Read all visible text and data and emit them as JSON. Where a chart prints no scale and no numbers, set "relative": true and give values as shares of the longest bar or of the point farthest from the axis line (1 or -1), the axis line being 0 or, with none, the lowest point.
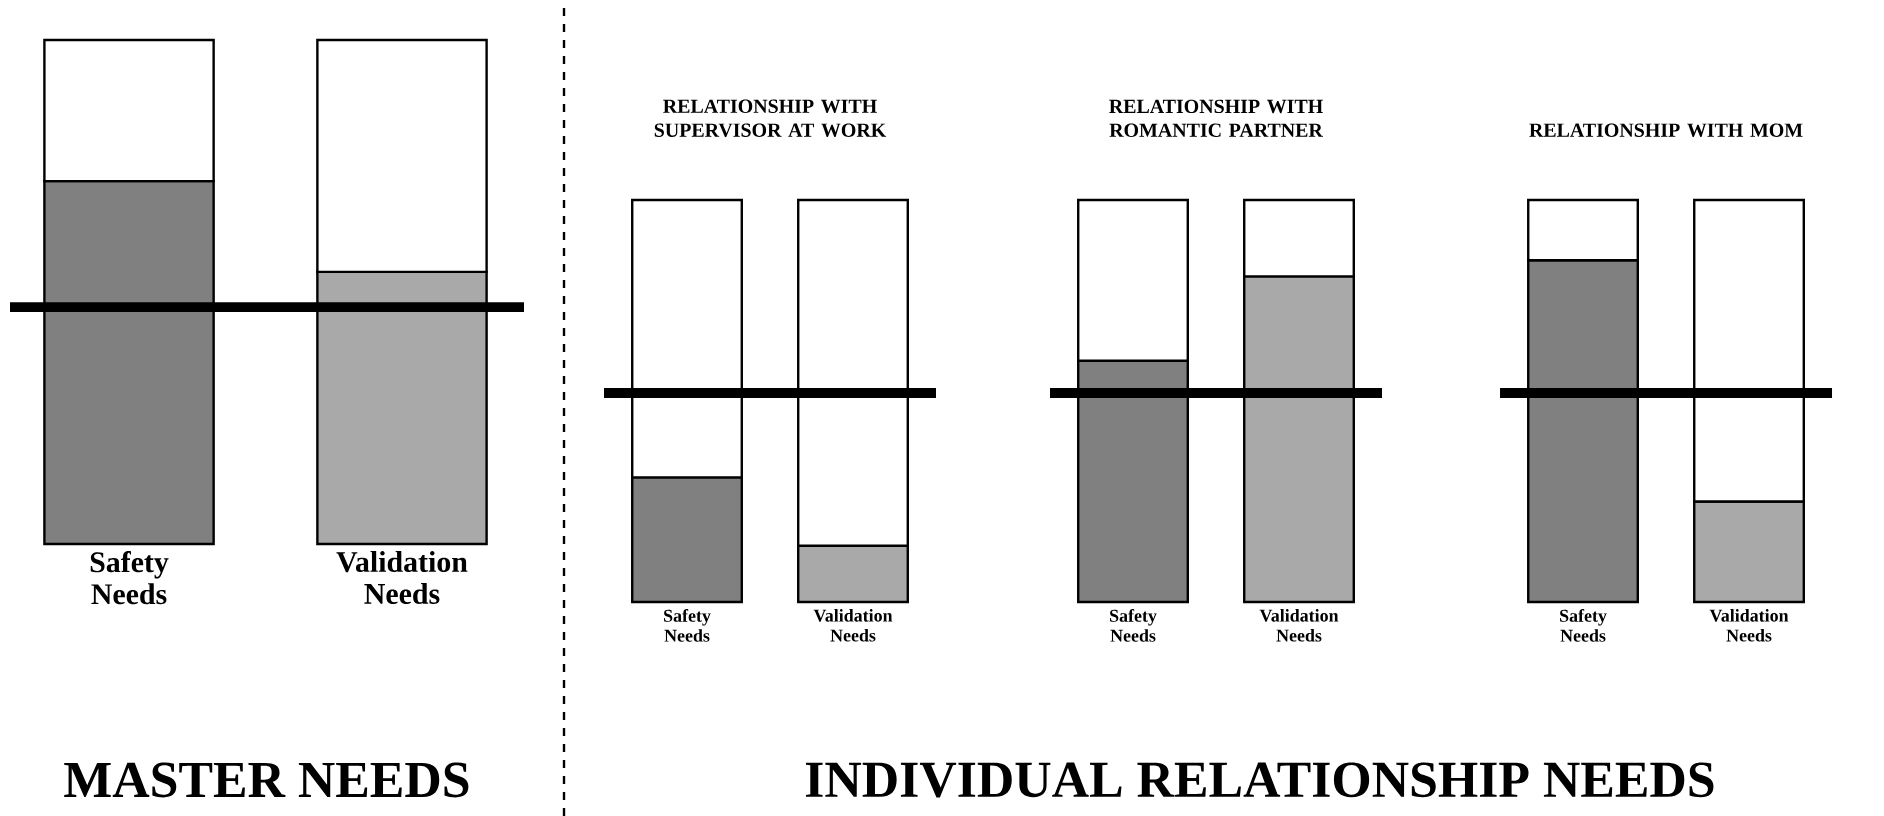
{
  "chart_data": [
    {
      "type": "bar",
      "relative": true,
      "stacked": true,
      "categories": [
        "Safety Needs",
        "Validation Needs"
      ],
      "xlabel": "MASTER NEEDS",
      "series": [
        {
          "colors": [
            "#808080",
            "#a9a9a9"
          ],
          "values": [
            0.72,
            0.54
          ]
        },
        {
          "color": "#ffffff",
          "values": [
            0.28,
            0.46
          ]
        }
      ],
      "ref_lines": [
        {
          "axis": "y",
          "value": 0.47,
          "color": "#000000"
        }
      ]
    },
    {
      "type": "bar",
      "relative": true,
      "stacked": true,
      "title": "RELATIONSHIP WITH SUPERVISOR AT WORK",
      "categories": [
        "Safety Needs",
        "Validation Needs"
      ],
      "series": [
        {
          "colors": [
            "#808080",
            "#a9a9a9"
          ],
          "values": [
            0.31,
            0.14
          ]
        },
        {
          "color": "#ffffff",
          "values": [
            0.69,
            0.86
          ]
        }
      ],
      "ref_lines": [
        {
          "axis": "y",
          "value": 0.52,
          "color": "#000000"
        }
      ]
    },
    {
      "type": "bar",
      "relative": true,
      "stacked": true,
      "title": "RELATIONSHIP WITH ROMANTIC PARTNER",
      "categories": [
        "Safety Needs",
        "Validation Needs"
      ],
      "series": [
        {
          "colors": [
            "#808080",
            "#a9a9a9"
          ],
          "values": [
            0.6,
            0.81
          ]
        },
        {
          "color": "#ffffff",
          "values": [
            0.4,
            0.19
          ]
        }
      ],
      "ref_lines": [
        {
          "axis": "y",
          "value": 0.52,
          "color": "#000000"
        }
      ],
      "annotations": [
        "INDIVIDUAL RELATIONSHIP NEEDS"
      ]
    },
    {
      "type": "bar",
      "relative": true,
      "stacked": true,
      "title": "RELATIONSHIP WITH MOM",
      "categories": [
        "Safety Needs",
        "Validation Needs"
      ],
      "series": [
        {
          "colors": [
            "#808080",
            "#a9a9a9"
          ],
          "values": [
            0.85,
            0.25
          ]
        },
        {
          "color": "#ffffff",
          "values": [
            0.15,
            0.75
          ]
        }
      ],
      "ref_lines": [
        {
          "axis": "y",
          "value": 0.52,
          "color": "#000000"
        }
      ]
    }
  ]
}
